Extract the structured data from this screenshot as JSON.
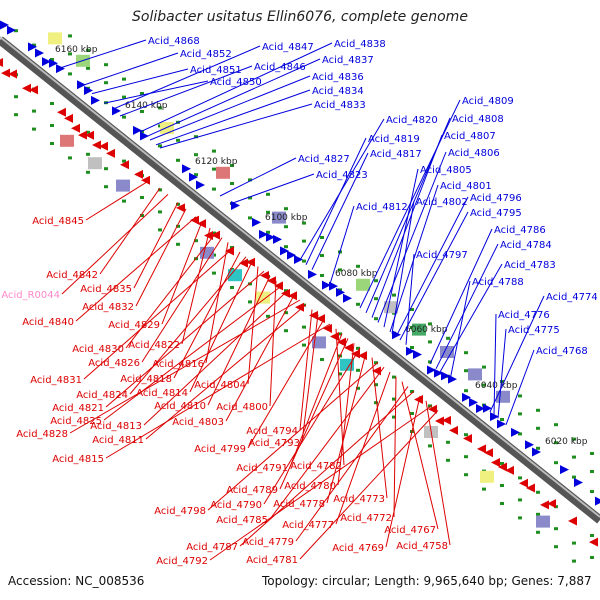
{
  "title": "Solibacter usitatus Ellin6076, complete genome",
  "footer": {
    "accession": "Accession: NC_008536",
    "summary": "Topology: circular; Length: 9,965,640 bp; Genes: 7,887"
  },
  "colors": {
    "plus_strand": "#0000dd",
    "minus_strand": "#dd0000",
    "rna": "#ff88cc",
    "axis": "#7f7f7f",
    "tick": "#1e8f1e"
  },
  "scale_labels": [
    "6160 kbp",
    "6140 kbp",
    "6120 kbp",
    "6100 kbp",
    "6080 kbp",
    "6060 kbp",
    "6040 kbp",
    "6020 kbp"
  ],
  "plus_genes": [
    "Acid_4868",
    "Acid_4852",
    "Acid_4851",
    "Acid_4850",
    "Acid_4847",
    "Acid_4846",
    "Acid_4838",
    "Acid_4837",
    "Acid_4836",
    "Acid_4834",
    "Acid_4833",
    "Acid_4827",
    "Acid_4823",
    "Acid_4820",
    "Acid_4819",
    "Acid_4817",
    "Acid_4812",
    "Acid_4809",
    "Acid_4808",
    "Acid_4807",
    "Acid_4806",
    "Acid_4805",
    "Acid_4801",
    "Acid_4802",
    "Acid_4796",
    "Acid_4795",
    "Acid_4797",
    "Acid_4786",
    "Acid_4784",
    "Acid_4783",
    "Acid_4788",
    "Acid_4774",
    "Acid_4776",
    "Acid_4775",
    "Acid_4768"
  ],
  "minus_genes": [
    "Acid_4845",
    "Acid_4842",
    "Acid_R0044",
    "Acid_4835",
    "Acid_4832",
    "Acid_4840",
    "Acid_4829",
    "Acid_4822",
    "Acid_4830",
    "Acid_4826",
    "Acid_4816",
    "Acid_4831",
    "Acid_4818",
    "Acid_4824",
    "Acid_4814",
    "Acid_4804",
    "Acid_4821",
    "Acid_4810",
    "Acid_4800",
    "Acid_4825",
    "Acid_4813",
    "Acid_4803",
    "Acid_4828",
    "Acid_4811",
    "Acid_4794",
    "Acid_4793",
    "Acid_4799",
    "Acid_4815",
    "Acid_4782",
    "Acid_4791",
    "Acid_4789",
    "Acid_4780",
    "Acid_4790",
    "Acid_4778",
    "Acid_4773",
    "Acid_4798",
    "Acid_4785",
    "Acid_4777",
    "Acid_4772",
    "Acid_4767",
    "Acid_4779",
    "Acid_4787",
    "Acid_4769",
    "Acid_4758",
    "Acid_4792",
    "Acid_4781"
  ]
}
